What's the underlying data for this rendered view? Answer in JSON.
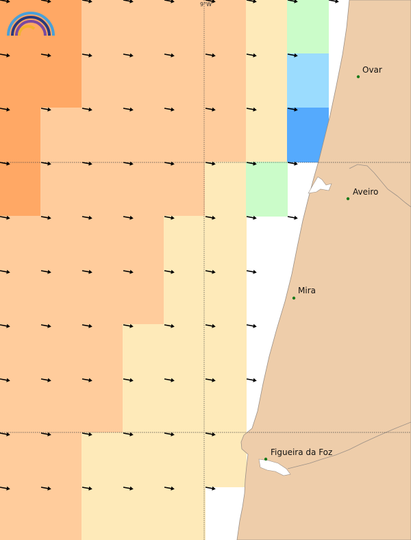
{
  "map": {
    "longitude_label": "9°W",
    "colors": {
      "land": "#eecdaa",
      "sea": "#ffffff",
      "coast_line": "#9a8f86",
      "arrow": "#000000",
      "place_dot": "#1a7a1a",
      "grid_line": "#444444"
    },
    "legend_palette": {
      "orange_dark": "#ffa865",
      "orange_light": "#ffcc9c",
      "cream": "#feeab9",
      "light_green": "#cbfcc9",
      "light_blue": "#9bdcfe",
      "blue": "#55aafd"
    },
    "places": [
      {
        "name": "Ovar"
      },
      {
        "name": "Aveiro"
      },
      {
        "name": "Mira"
      },
      {
        "name": "Figueira da Foz"
      }
    ]
  }
}
